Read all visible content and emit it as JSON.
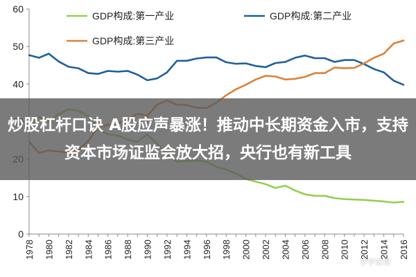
{
  "banner": {
    "headline": "炒股杠杆口诀 A股应声暴涨！推动中长期资金入市，支持资本市场证监会放大招，央行也有新工具"
  },
  "watermark": {
    "text": "学宇宏观"
  },
  "chart_data": {
    "type": "line",
    "title": "",
    "xlabel": "",
    "ylabel": "",
    "ylim": [
      0,
      60
    ],
    "yticks": [
      0,
      10,
      20,
      30,
      40,
      50,
      60
    ],
    "xlim": [
      1978,
      2016
    ],
    "xticks": [
      1978,
      1980,
      1982,
      1984,
      1986,
      1988,
      1990,
      1992,
      1994,
      1996,
      1998,
      2000,
      2002,
      2004,
      2006,
      2008,
      2010,
      2012,
      2014,
      2016
    ],
    "grid": false,
    "legend": "top",
    "x": [
      1978,
      1979,
      1980,
      1981,
      1982,
      1983,
      1984,
      1985,
      1986,
      1987,
      1988,
      1989,
      1990,
      1991,
      1992,
      1993,
      1994,
      1995,
      1996,
      1997,
      1998,
      1999,
      2000,
      2001,
      2002,
      2003,
      2004,
      2005,
      2006,
      2007,
      2008,
      2009,
      2010,
      2011,
      2012,
      2013,
      2014,
      2015,
      2016
    ],
    "series": [
      {
        "name": "GDP构成:第一产业",
        "color": "#92d050",
        "values": [
          28.1,
          31.2,
          30.1,
          31.9,
          33.3,
          32.8,
          31.5,
          27.9,
          26.6,
          26.3,
          25.2,
          24.6,
          26.6,
          24.0,
          21.3,
          19.3,
          19.5,
          19.6,
          19.3,
          17.9,
          17.2,
          16.1,
          14.7,
          14.0,
          13.3,
          12.3,
          12.9,
          11.6,
          10.6,
          10.2,
          10.2,
          9.6,
          9.3,
          9.2,
          9.1,
          8.9,
          8.7,
          8.4,
          8.6
        ]
      },
      {
        "name": "GDP构成:第二产业",
        "color": "#1f5f9e",
        "values": [
          47.7,
          47.0,
          48.1,
          46.0,
          44.6,
          44.2,
          42.9,
          42.7,
          43.5,
          43.3,
          43.5,
          42.5,
          41.0,
          41.5,
          43.1,
          46.2,
          46.2,
          46.8,
          47.1,
          47.1,
          45.8,
          45.4,
          45.5,
          44.8,
          44.5,
          45.6,
          45.9,
          47.0,
          47.6,
          46.9,
          46.9,
          45.9,
          46.4,
          46.4,
          45.3,
          44.0,
          43.1,
          40.9,
          39.8
        ]
      },
      {
        "name": "GDP构成:第三产业",
        "color": "#d9823b",
        "values": [
          24.6,
          21.6,
          22.3,
          22.0,
          21.8,
          22.4,
          24.8,
          28.5,
          29.1,
          29.6,
          30.5,
          32.1,
          31.5,
          34.5,
          35.6,
          34.5,
          34.4,
          33.7,
          33.6,
          35.0,
          37.0,
          38.6,
          39.8,
          41.2,
          42.2,
          42.0,
          41.2,
          41.4,
          41.9,
          42.9,
          42.9,
          44.4,
          44.2,
          44.3,
          45.5,
          47.0,
          48.1,
          50.8,
          51.6
        ]
      }
    ]
  }
}
